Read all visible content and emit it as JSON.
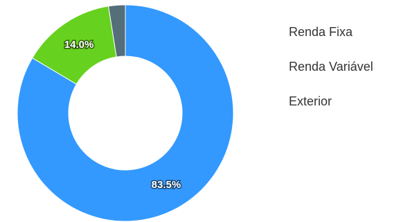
{
  "chart_data": {
    "type": "pie",
    "donut": true,
    "categories": [
      "Renda Fixa",
      "Renda Variável",
      "Exterior"
    ],
    "values": [
      83.5,
      14.0,
      2.5
    ],
    "value_labels": [
      "83.5%",
      "14.0%",
      ""
    ],
    "colors": [
      "#3399ff",
      "#66d11e",
      "#546e7a"
    ],
    "legend_position": "right"
  },
  "legend": {
    "items": [
      {
        "label": "Renda Fixa"
      },
      {
        "label": "Renda Variável"
      },
      {
        "label": "Exterior"
      }
    ]
  }
}
